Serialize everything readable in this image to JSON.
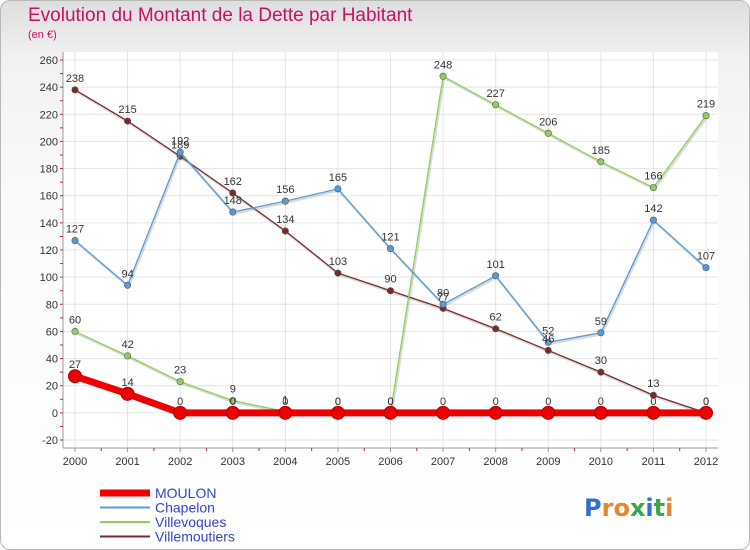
{
  "title": "Evolution du Montant de la Dette par Habitant",
  "subtitle": "(en €)",
  "logo": "Proxiti",
  "chart_data": {
    "type": "line",
    "title": "Evolution du Montant de la Dette par Habitant",
    "subtitle": "(en €)",
    "xlabel": "",
    "ylabel": "",
    "ylim": [
      -20,
      260
    ],
    "yticks": [
      -20,
      0,
      20,
      40,
      60,
      80,
      100,
      120,
      140,
      160,
      180,
      200,
      220,
      240,
      260
    ],
    "categories": [
      "2000",
      "2001",
      "2002",
      "2003",
      "2004",
      "2005",
      "2006",
      "2007",
      "2008",
      "2009",
      "2010",
      "2011",
      "2012"
    ],
    "grid": true,
    "legend_position": "bottom-left",
    "series": [
      {
        "name": "Villemoutiers",
        "color": "#7a2a2a",
        "width": 1.3,
        "values": [
          238,
          215,
          189,
          162,
          134,
          103,
          90,
          77,
          62,
          46,
          30,
          13,
          0
        ],
        "labels": [
          "238",
          "215",
          "189",
          "162",
          "134",
          "103",
          "90",
          "77",
          "62",
          "46",
          "30",
          "13",
          "0"
        ]
      },
      {
        "name": "Villevoques",
        "color": "#8fd05a",
        "width": 1.3,
        "values": [
          60,
          42,
          23,
          9,
          1,
          0,
          0,
          248,
          227,
          206,
          185,
          166,
          219
        ],
        "labels": [
          "60",
          "42",
          "23",
          "9",
          "1",
          "0",
          "0",
          "248",
          "227",
          "206",
          "185",
          "166",
          "219"
        ]
      },
      {
        "name": "Chapelon",
        "color": "#5b9bd5",
        "width": 1.3,
        "values": [
          127,
          94,
          192,
          148,
          156,
          165,
          121,
          80,
          101,
          52,
          59,
          142,
          107
        ],
        "labels": [
          "127",
          "94",
          "192",
          "148",
          "156",
          "165",
          "121",
          "80",
          "101",
          "52",
          "59",
          "142",
          "107"
        ]
      },
      {
        "name": "MOULON",
        "color": "#ee0000",
        "width": 7,
        "values": [
          27,
          14,
          0,
          0,
          0,
          0,
          0,
          0,
          0,
          0,
          0,
          0,
          0
        ],
        "labels": [
          "27",
          "14",
          "0",
          "0",
          "0",
          "0",
          "0",
          "0",
          "0",
          "0",
          "0",
          "0",
          "0"
        ]
      }
    ],
    "legend": [
      {
        "name": "MOULON",
        "color": "#ee0000"
      },
      {
        "name": "Chapelon",
        "color": "#5b9bd5"
      },
      {
        "name": "Villevoques",
        "color": "#8fd05a"
      },
      {
        "name": "Villemoutiers",
        "color": "#7a2a2a"
      }
    ]
  }
}
